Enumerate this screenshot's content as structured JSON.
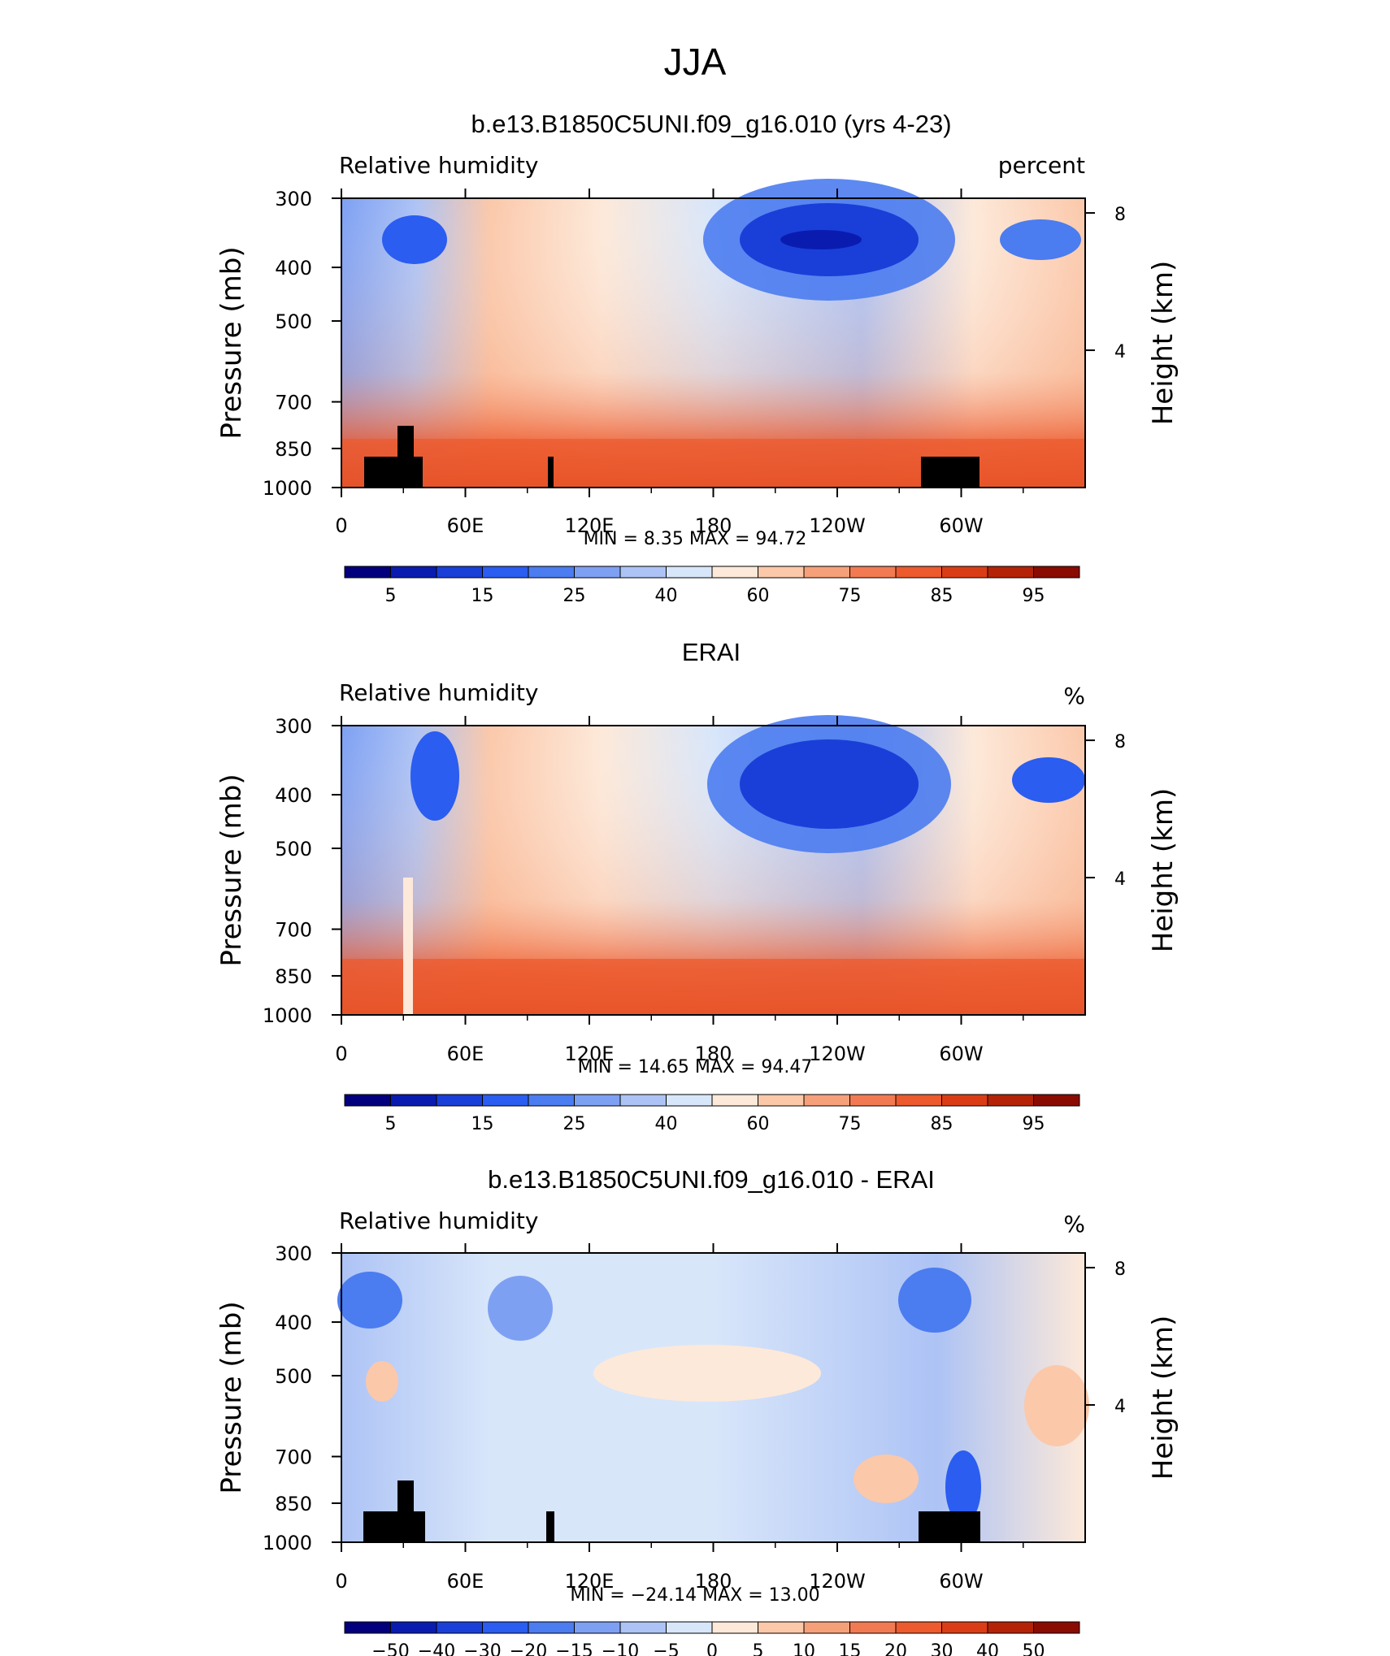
{
  "figure": {
    "season_title": "JJA"
  },
  "chart_data": [
    {
      "type": "heatmap",
      "title": "b.e13.B1850C5UNI.f09_g16.010 (yrs 4-23)",
      "variable": "Relative humidity",
      "units": "percent",
      "ylabel": "Pressure (mb)",
      "ylabel_right": "Height (km)",
      "yticks": [
        "300",
        "400",
        "500",
        "700",
        "850",
        "1000"
      ],
      "yticks_right": [
        "8",
        "4"
      ],
      "xticks": [
        "0",
        "60E",
        "120E",
        "180",
        "120W",
        "60W"
      ],
      "stats": "MIN =     8.35   MAX =    94.72",
      "min": 8.35,
      "max": 94.72,
      "colorbar_labels": [
        "5",
        "15",
        "25",
        "40",
        "60",
        "75",
        "85",
        "95"
      ],
      "colorbar_colors": [
        "#02007c",
        "#0a1cb0",
        "#1a3fd8",
        "#2a5df0",
        "#4b7cf0",
        "#7ea0f3",
        "#adc3f5",
        "#d8e6fa",
        "#fde9d9",
        "#fbc8aa",
        "#f6a07a",
        "#f27a52",
        "#ec5a2e",
        "#da3d16",
        "#b42308",
        "#8a0b02"
      ],
      "topography": true
    },
    {
      "type": "heatmap",
      "title": "ERAI",
      "variable": "Relative humidity",
      "units": "%",
      "ylabel": "Pressure (mb)",
      "ylabel_right": "Height (km)",
      "yticks": [
        "300",
        "400",
        "500",
        "700",
        "850",
        "1000"
      ],
      "yticks_right": [
        "8",
        "4"
      ],
      "xticks": [
        "0",
        "60E",
        "120E",
        "180",
        "120W",
        "60W"
      ],
      "stats": "MIN =    14.65   MAX =    94.47",
      "min": 14.65,
      "max": 94.47,
      "colorbar_labels": [
        "5",
        "15",
        "25",
        "40",
        "60",
        "75",
        "85",
        "95"
      ],
      "colorbar_colors": [
        "#02007c",
        "#0a1cb0",
        "#1a3fd8",
        "#2a5df0",
        "#4b7cf0",
        "#7ea0f3",
        "#adc3f5",
        "#d8e6fa",
        "#fde9d9",
        "#fbc8aa",
        "#f6a07a",
        "#f27a52",
        "#ec5a2e",
        "#da3d16",
        "#b42308",
        "#8a0b02"
      ],
      "topography": false
    },
    {
      "type": "heatmap",
      "title": "b.e13.B1850C5UNI.f09_g16.010 - ERAI",
      "variable": "Relative humidity",
      "units": "%",
      "ylabel": "Pressure (mb)",
      "ylabel_right": "Height (km)",
      "yticks": [
        "300",
        "400",
        "500",
        "700",
        "850",
        "1000"
      ],
      "yticks_right": [
        "8",
        "4"
      ],
      "xticks": [
        "0",
        "60E",
        "120E",
        "180",
        "120W",
        "60W"
      ],
      "stats": "MIN =  −24.14   MAX =    13.00",
      "min": -24.14,
      "max": 13.0,
      "colorbar_labels": [
        "−50",
        "−40",
        "−30",
        "−20",
        "−15",
        "−10",
        "−5",
        "0",
        "5",
        "10",
        "15",
        "20",
        "30",
        "40",
        "50"
      ],
      "colorbar_colors": [
        "#02007c",
        "#0a1cb0",
        "#1a3fd8",
        "#2a5df0",
        "#4b7cf0",
        "#7ea0f3",
        "#adc3f5",
        "#d8e6fa",
        "#fde9d9",
        "#fbc8aa",
        "#f6a07a",
        "#f27a52",
        "#ec5a2e",
        "#da3d16",
        "#b42308",
        "#8a0b02"
      ],
      "topography": true
    }
  ]
}
